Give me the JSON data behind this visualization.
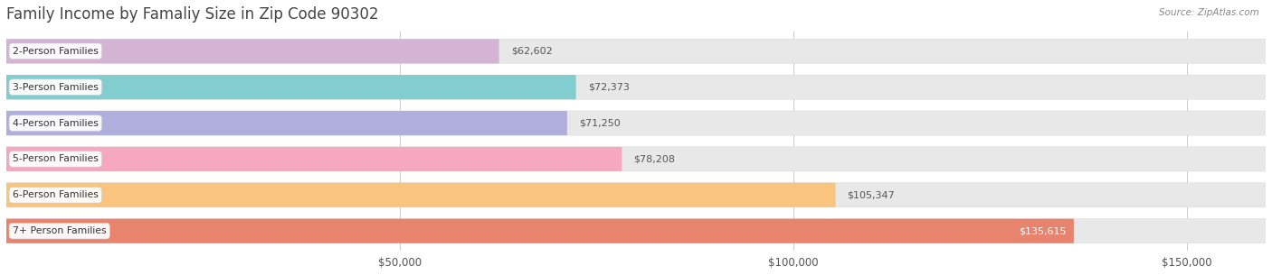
{
  "title": "Family Income by Famaliy Size in Zip Code 90302",
  "source": "Source: ZipAtlas.com",
  "categories": [
    "2-Person Families",
    "3-Person Families",
    "4-Person Families",
    "5-Person Families",
    "6-Person Families",
    "7+ Person Families"
  ],
  "values": [
    62602,
    72373,
    71250,
    78208,
    105347,
    135615
  ],
  "labels": [
    "$62,602",
    "$72,373",
    "$71,250",
    "$78,208",
    "$105,347",
    "$135,615"
  ],
  "bar_colors": [
    "#d4b4d4",
    "#82cece",
    "#b0aedd",
    "#f5a8c0",
    "#f9c47e",
    "#e8836e"
  ],
  "background_color": "#f0f0f0",
  "bar_bg_color": "#e8e8e8",
  "xlim": [
    0,
    160000
  ],
  "xticks": [
    50000,
    100000,
    150000
  ],
  "xticklabels": [
    "$50,000",
    "$100,000",
    "$150,000"
  ],
  "label_inside_threshold": 110000,
  "title_fontsize": 12,
  "bar_height": 0.68,
  "figsize": [
    14.06,
    3.05
  ],
  "dpi": 100
}
